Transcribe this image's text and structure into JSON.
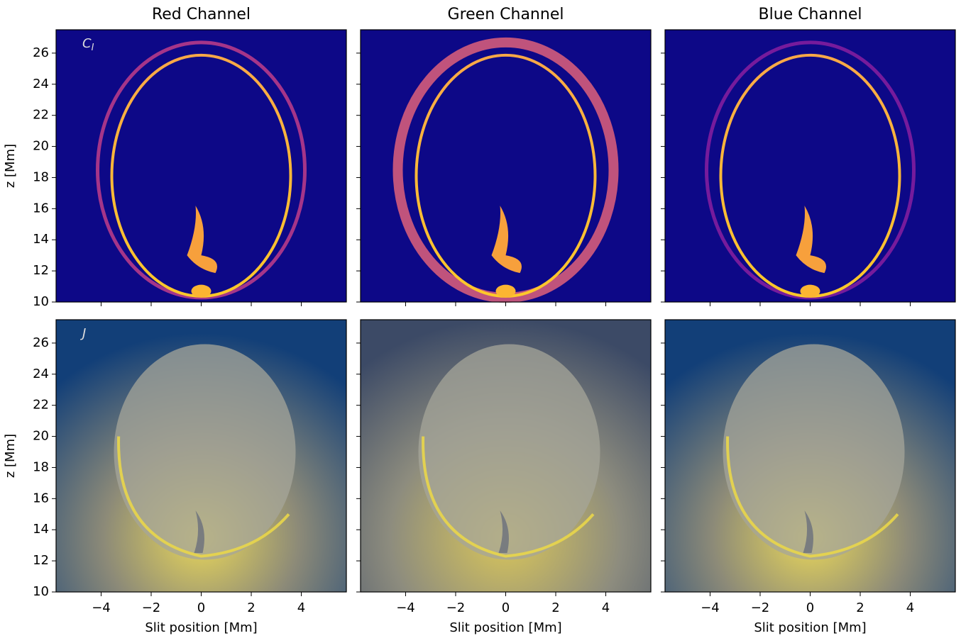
{
  "chart_data": {
    "type": "image",
    "titles": [
      "Red Channel",
      "Green Channel",
      "Blue Channel"
    ],
    "panel_labels": [
      {
        "main": "C",
        "sub": "I"
      },
      {
        "main": "J"
      }
    ],
    "xlabel": "Slit position [Mm]",
    "ylabel": "z [Mm]",
    "xlim": [
      -5.8,
      5.8
    ],
    "ylim": [
      10,
      27.5
    ],
    "xticks": [
      {
        "value": -4,
        "label": "−4"
      },
      {
        "value": -2,
        "label": "−2"
      },
      0,
      2,
      4
    ],
    "yticks": [
      10,
      12,
      14,
      16,
      18,
      20,
      22,
      24,
      26
    ]
  }
}
